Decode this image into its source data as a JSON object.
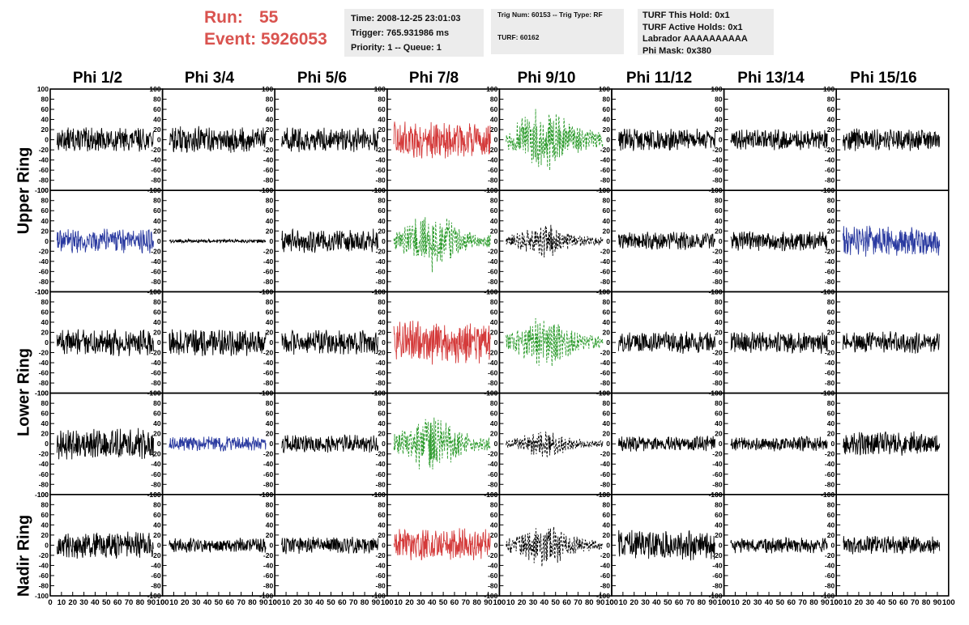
{
  "run": {
    "label": "Run:",
    "value": "55"
  },
  "event": {
    "label": "Event:",
    "value": "5926053"
  },
  "time_box": {
    "time": "Time: 2008-12-25 23:01:03",
    "trigger": "Trigger: 765.931986 ms",
    "priority": "Priority: 1 -- Queue: 1"
  },
  "trig_box": {
    "trig": "Trig Num: 60153 -- Trig Type: RF",
    "turf": "TURF: 60162"
  },
  "turf_box": {
    "this_hold": "TURF This Hold: 0x1",
    "active_holds": "TURF Active Holds: 0x1",
    "labrador": "Labrador AAAAAAAAAA",
    "phi_mask": "Phi Mask: 0x380"
  },
  "phi_labels": [
    "Phi 1/2",
    "Phi 3/4",
    "Phi 5/6",
    "Phi 7/8",
    "Phi 9/10",
    "Phi 11/12",
    "Phi 13/14",
    "Phi 15/16"
  ],
  "ring_labels": {
    "upper": "Upper Ring",
    "lower": "Lower Ring",
    "nadir": "Nadir Ring"
  },
  "colors": {
    "red": "#d43a3a",
    "green": "#2a9a2a",
    "blue": "#2a3aa0",
    "black": "#000000",
    "run_text": "#d9534f",
    "info_bg": "#ececec"
  },
  "y_ticks": [
    "100",
    "80",
    "60",
    "40",
    "20",
    "0",
    "-20",
    "-40",
    "-60",
    "-80",
    "-100"
  ],
  "x_tick_labels": [
    "0",
    "10",
    "20",
    "30",
    "40",
    "50",
    "60",
    "70",
    "80",
    "90",
    "100"
  ],
  "chart_data": {
    "type": "line",
    "title": "",
    "xlabel": "",
    "ylabel": "",
    "xlim": [
      0,
      100
    ],
    "ylim": [
      -100,
      100
    ],
    "grid": false,
    "panels": [
      {
        "row": 0,
        "col": 0,
        "color": "black",
        "style": "solid",
        "amplitude": 20
      },
      {
        "row": 0,
        "col": 1,
        "color": "black",
        "style": "solid",
        "amplitude": 22
      },
      {
        "row": 0,
        "col": 2,
        "color": "black",
        "style": "solid",
        "amplitude": 20
      },
      {
        "row": 0,
        "col": 3,
        "color": "red",
        "style": "solid",
        "amplitude": 30
      },
      {
        "row": 0,
        "col": 4,
        "color": "green",
        "style": "dashed",
        "amplitude": 60
      },
      {
        "row": 0,
        "col": 5,
        "color": "black",
        "style": "solid",
        "amplitude": 18
      },
      {
        "row": 0,
        "col": 6,
        "color": "black",
        "style": "solid",
        "amplitude": 17
      },
      {
        "row": 0,
        "col": 7,
        "color": "black",
        "style": "solid",
        "amplitude": 18
      },
      {
        "row": 1,
        "col": 0,
        "color": "blue",
        "style": "solid",
        "amplitude": 20
      },
      {
        "row": 1,
        "col": 1,
        "color": "black",
        "style": "solid",
        "amplitude": 3
      },
      {
        "row": 1,
        "col": 2,
        "color": "black",
        "style": "solid",
        "amplitude": 20
      },
      {
        "row": 1,
        "col": 3,
        "color": "green",
        "style": "dashed",
        "amplitude": 50
      },
      {
        "row": 1,
        "col": 4,
        "color": "black",
        "style": "dashed",
        "amplitude": 28
      },
      {
        "row": 1,
        "col": 5,
        "color": "black",
        "style": "solid",
        "amplitude": 15
      },
      {
        "row": 1,
        "col": 6,
        "color": "black",
        "style": "solid",
        "amplitude": 16
      },
      {
        "row": 1,
        "col": 7,
        "color": "blue",
        "style": "solid",
        "amplitude": 25
      },
      {
        "row": 2,
        "col": 0,
        "color": "black",
        "style": "solid",
        "amplitude": 22
      },
      {
        "row": 2,
        "col": 1,
        "color": "black",
        "style": "solid",
        "amplitude": 22
      },
      {
        "row": 2,
        "col": 2,
        "color": "black",
        "style": "solid",
        "amplitude": 20
      },
      {
        "row": 2,
        "col": 3,
        "color": "red",
        "style": "solid",
        "amplitude": 35
      },
      {
        "row": 2,
        "col": 4,
        "color": "green",
        "style": "dashed",
        "amplitude": 45
      },
      {
        "row": 2,
        "col": 5,
        "color": "black",
        "style": "solid",
        "amplitude": 18
      },
      {
        "row": 2,
        "col": 6,
        "color": "black",
        "style": "solid",
        "amplitude": 18
      },
      {
        "row": 2,
        "col": 7,
        "color": "black",
        "style": "solid",
        "amplitude": 18
      },
      {
        "row": 3,
        "col": 0,
        "color": "black",
        "style": "solid",
        "amplitude": 25
      },
      {
        "row": 3,
        "col": 1,
        "color": "blue",
        "style": "solid",
        "amplitude": 12
      },
      {
        "row": 3,
        "col": 2,
        "color": "black",
        "style": "solid",
        "amplitude": 15
      },
      {
        "row": 3,
        "col": 3,
        "color": "green",
        "style": "dashed",
        "amplitude": 50
      },
      {
        "row": 3,
        "col": 4,
        "color": "black",
        "style": "dashed",
        "amplitude": 22
      },
      {
        "row": 3,
        "col": 5,
        "color": "black",
        "style": "solid",
        "amplitude": 13
      },
      {
        "row": 3,
        "col": 6,
        "color": "black",
        "style": "solid",
        "amplitude": 12
      },
      {
        "row": 3,
        "col": 7,
        "color": "black",
        "style": "solid",
        "amplitude": 20
      },
      {
        "row": 4,
        "col": 0,
        "color": "black",
        "style": "solid",
        "amplitude": 22
      },
      {
        "row": 4,
        "col": 1,
        "color": "black",
        "style": "solid",
        "amplitude": 12
      },
      {
        "row": 4,
        "col": 2,
        "color": "black",
        "style": "solid",
        "amplitude": 14
      },
      {
        "row": 4,
        "col": 3,
        "color": "red",
        "style": "solid",
        "amplitude": 28
      },
      {
        "row": 4,
        "col": 4,
        "color": "black",
        "style": "dashed",
        "amplitude": 35
      },
      {
        "row": 4,
        "col": 5,
        "color": "black",
        "style": "solid",
        "amplitude": 25
      },
      {
        "row": 4,
        "col": 6,
        "color": "black",
        "style": "solid",
        "amplitude": 13
      },
      {
        "row": 4,
        "col": 7,
        "color": "black",
        "style": "solid",
        "amplitude": 15
      }
    ]
  }
}
